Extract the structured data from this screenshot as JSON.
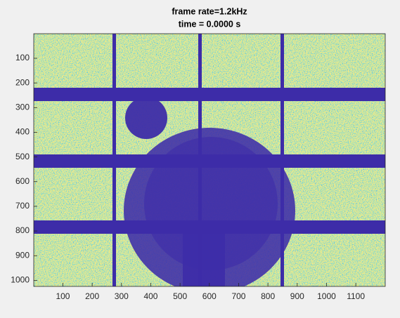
{
  "chart_data": {
    "type": "image",
    "title": "frame rate=1.2kHz",
    "subtitle": "time = 0.0000 s",
    "xlim": [
      0.5,
      1200.5
    ],
    "ylim": [
      0.5,
      1024.5
    ],
    "reverse_y": true,
    "xticks": [
      100,
      200,
      300,
      400,
      500,
      600,
      700,
      800,
      900,
      1000,
      1100
    ],
    "yticks": [
      100,
      200,
      300,
      400,
      500,
      600,
      700,
      800,
      900,
      1000
    ]
  }
}
